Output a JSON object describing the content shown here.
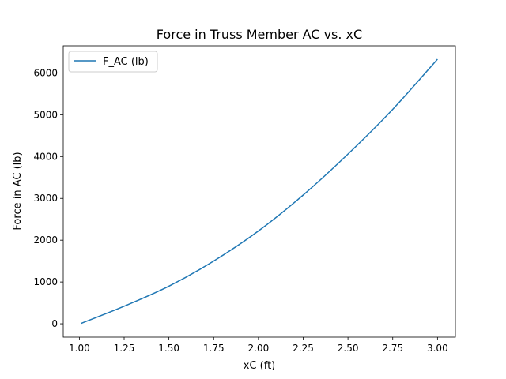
{
  "chart_data": {
    "type": "line",
    "title": "Force in Truss Member AC vs. xC",
    "xlabel": "xC (ft)",
    "ylabel": "Force in AC (lb)",
    "xlim": [
      0.91,
      3.1
    ],
    "ylim": [
      -320,
      6650
    ],
    "xticks": [
      1.0,
      1.25,
      1.5,
      1.75,
      2.0,
      2.25,
      2.5,
      2.75,
      3.0
    ],
    "xtick_labels": [
      "1.00",
      "1.25",
      "1.50",
      "1.75",
      "2.00",
      "2.25",
      "2.50",
      "2.75",
      "3.00"
    ],
    "yticks": [
      0,
      1000,
      2000,
      3000,
      4000,
      5000,
      6000
    ],
    "ytick_labels": [
      "0",
      "1000",
      "2000",
      "3000",
      "4000",
      "5000",
      "6000"
    ],
    "grid": false,
    "legend_position": "top-left",
    "series": [
      {
        "name": "F_AC (lb)",
        "color": "#1f77b4",
        "x": [
          1.01,
          1.25,
          1.5,
          1.75,
          2.0,
          2.25,
          2.5,
          2.75,
          3.0
        ],
        "y": [
          10,
          420,
          900,
          1500,
          2220,
          3080,
          4060,
          5130,
          6330
        ]
      }
    ]
  }
}
